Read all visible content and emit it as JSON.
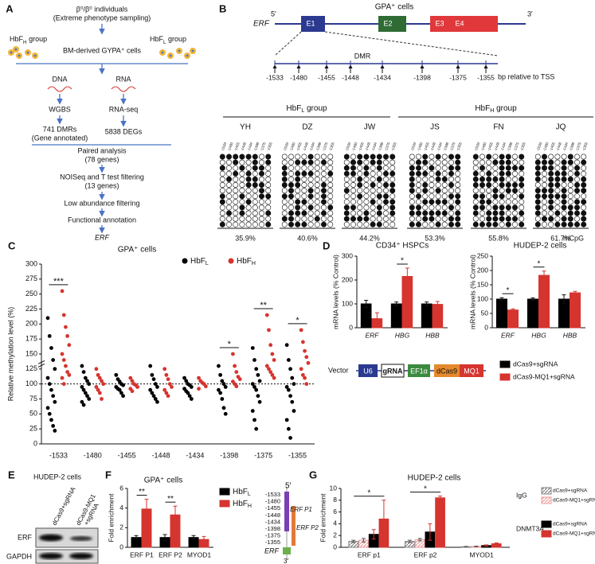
{
  "panel_A": {
    "label": "A",
    "top": "β⁰/β⁰ individuals",
    "top2": "(Extreme phenotype sampling)",
    "grp_h": [
      "HbF",
      "H",
      " group"
    ],
    "grp_l": [
      "HbF",
      "L",
      " group"
    ],
    "cells": "BM-derived GYPA⁺ cells",
    "dna": "DNA",
    "rna": "RNA",
    "wgbs": "WGBS",
    "rnaseq": "RNA-seq",
    "dmrs": "741 DMRs",
    "gene_ann": "(Gene annotated)",
    "degs": "5838 DEGs",
    "paired": "Paired analysis",
    "paired2": "(78 genes)",
    "noiseq": "NOISeq and T test filtering",
    "noiseq2": "(13 genes)",
    "low": "Low abundance filtering",
    "func": "Functional annotation",
    "erf": "ERF"
  },
  "panel_B": {
    "label": "B",
    "title": "GPA⁺ cells",
    "gene": "ERF",
    "five": "5′",
    "three": "3′",
    "exons": [
      "E1",
      "E2",
      "E3",
      "E4"
    ],
    "exon_colors": [
      "#2b3990",
      "#2f6b34",
      "#e0383b",
      "#e0383b"
    ],
    "dmr": "DMR",
    "positions": [
      -1533,
      -1480,
      -1455,
      -1448,
      -1434,
      -1398,
      -1375,
      -1355
    ],
    "bp": "bp relative to TSS",
    "groups": [
      [
        "HbF",
        "L",
        " group"
      ],
      [
        "HbF",
        "H",
        " group"
      ]
    ],
    "samples": [
      "YH",
      "DZ",
      "JW",
      "JS",
      "FN",
      "JQ"
    ],
    "pct": [
      35.9,
      40.6,
      44.2,
      53.3,
      55.8,
      61.7
    ],
    "pct_labels": [
      "35.9%",
      "40.6%",
      "44.2%",
      "53.3%",
      "55.8%",
      "61.7%"
    ],
    "unit": "mCpG"
  },
  "chart_data": [
    {
      "type": "dot",
      "label": "C",
      "title": "GPA⁺ cells",
      "y_label": "Relative methylation level (%)",
      "categories": [
        "-1533",
        "-1480",
        "-1455",
        "-1448",
        "-1434",
        "-1398",
        "-1375",
        "-1355"
      ],
      "ylim": [
        0,
        300
      ],
      "yticks": [
        0,
        25,
        50,
        75,
        100,
        125,
        150,
        175,
        200,
        225,
        250,
        275,
        300
      ],
      "ref_line": 100,
      "sig": [
        "***",
        null,
        null,
        null,
        null,
        "*",
        "**",
        "*"
      ],
      "series": [
        {
          "name": "HbF",
          "sub": "L",
          "color": "#000000",
          "values": [
            [
              210,
              180,
              160,
              140,
              125,
              110,
              100,
              90,
              80,
              70,
              60,
              50,
              40,
              30,
              22
            ],
            [
              130,
              120,
              110,
              105,
              100,
              95,
              90,
              85,
              80,
              75,
              70,
              65
            ],
            [
              115,
              108,
              104,
              100,
              98,
              95,
              92,
              90,
              85,
              80
            ],
            [
              130,
              115,
              108,
              100,
              95,
              90,
              85,
              80,
              75,
              70
            ],
            [
              110,
              105,
              100,
              98,
              95,
              92,
              88,
              85,
              80,
              75
            ],
            [
              130,
              115,
              105,
              100,
              95,
              90,
              85,
              75,
              60,
              50
            ],
            [
              160,
              140,
              125,
              115,
              105,
              100,
              95,
              90,
              80,
              70,
              55,
              40,
              25
            ],
            [
              165,
              140,
              125,
              110,
              100,
              95,
              90,
              80,
              70,
              55,
              40,
              25,
              10
            ]
          ]
        },
        {
          "name": "HbF",
          "sub": "H",
          "color": "#d6342f",
          "values": [
            [
              255,
              215,
              195,
              180,
              165,
              150,
              140,
              130,
              120,
              115,
              110,
              100
            ],
            [
              125,
              115,
              110,
              105,
              100,
              95,
              90,
              85,
              75
            ],
            [
              110,
              105,
              100,
              98,
              95,
              92,
              88
            ],
            [
              125,
              115,
              108,
              100,
              95,
              90,
              85,
              80
            ],
            [
              110,
              105,
              102,
              100,
              96,
              92
            ],
            [
              150,
              130,
              120,
              112,
              108,
              104,
              100,
              96
            ],
            [
              215,
              190,
              165,
              150,
              140,
              130,
              125,
              120,
              115,
              110
            ],
            [
              190,
              170,
              155,
              145,
              135,
              125,
              115,
              110,
              100
            ]
          ]
        }
      ]
    },
    {
      "type": "bar",
      "label": "D",
      "title": "CD34⁺ HSPCs",
      "y_label": "mRNA levels (% Control)",
      "italic_categories": true,
      "categories": [
        "ERF",
        "HBG",
        "HBB"
      ],
      "ylim": [
        0,
        300
      ],
      "yticks": [
        0,
        100,
        200,
        300
      ],
      "sig": [
        null,
        "*",
        null
      ],
      "series": [
        {
          "name": "dCas9+sgRNA",
          "color": "#000000",
          "values": [
            100,
            100,
            100
          ],
          "errors": [
            15,
            8,
            8
          ]
        },
        {
          "name": "dCas9-MQ1+sgRNA",
          "color": "#d6342f",
          "values": [
            38,
            215,
            98
          ],
          "errors": [
            25,
            35,
            12
          ]
        }
      ]
    },
    {
      "type": "bar",
      "title": "HUDEP-2 cells",
      "y_label": "mRNA levels (% Control)",
      "italic_categories": true,
      "categories": [
        "ERF",
        "HBG",
        "HBB"
      ],
      "ylim": [
        0,
        250
      ],
      "yticks": [
        0,
        50,
        100,
        150,
        200,
        250
      ],
      "sig": [
        "*",
        "*",
        null
      ],
      "series": [
        {
          "color": "#000000",
          "values": [
            100,
            100,
            100
          ],
          "errors": [
            5,
            4,
            15
          ]
        },
        {
          "color": "#d6342f",
          "values": [
            62,
            183,
            122
          ],
          "errors": [
            4,
            15,
            5
          ]
        }
      ]
    },
    {
      "type": "bar",
      "label": "F",
      "title": "GPA⁺ cells",
      "y_label": "Fold enrichment",
      "italic_categories": false,
      "categories": [
        "ERF P1",
        "ERF P2",
        "MYOD1"
      ],
      "ylim": [
        0,
        6
      ],
      "yticks": [
        0,
        2,
        4,
        6
      ],
      "sig": [
        "**",
        "**",
        null
      ],
      "series": [
        {
          "name": "HbF",
          "sub": "L",
          "color": "#000000",
          "values": [
            1.0,
            1.0,
            1.0
          ],
          "errors": [
            0.2,
            0.3,
            0.2
          ]
        },
        {
          "name": "HbF",
          "sub": "H",
          "color": "#d6342f",
          "values": [
            3.9,
            3.3,
            0.8
          ],
          "errors": [
            1.0,
            0.9,
            0.3
          ]
        }
      ]
    },
    {
      "type": "bar",
      "label": "G",
      "title": "HUDEP-2 cells",
      "y_label": "Fold enrichment",
      "italic_categories": false,
      "categories": [
        "ERF p1",
        "ERF p2",
        "MYOD1"
      ],
      "ylim": [
        0,
        10
      ],
      "yticks": [
        0,
        2,
        4,
        6,
        8,
        10
      ],
      "sig": [
        "*",
        "*",
        null
      ],
      "series": [
        {
          "group": "IgG",
          "name": "dCas9+sgRNA",
          "color": "#808080",
          "hatch": true,
          "values": [
            1.0,
            1.0,
            0.1
          ],
          "errors": [
            0.2,
            0.2,
            0.05
          ]
        },
        {
          "name": "dCas9-MQ1+sgRNA",
          "color": "#f09a9a",
          "hatch": true,
          "values": [
            1.2,
            1.3,
            0.15
          ],
          "errors": [
            0.3,
            0.2,
            0.05
          ]
        },
        {
          "group": "DNMT3A",
          "name": "dCas9+sgRNA",
          "color": "#000000",
          "values": [
            2.2,
            2.6,
            0.3
          ],
          "errors": [
            0.8,
            1.4,
            0.1
          ]
        },
        {
          "name": "dCas9-MQ1+sgRNA",
          "color": "#d6342f",
          "values": [
            4.8,
            8.4,
            0.6
          ],
          "errors": [
            3.2,
            0.3,
            0.15
          ]
        }
      ]
    }
  ],
  "panel_D_vector": {
    "label": "Vector",
    "parts": [
      "U6",
      "gRNA",
      "EF1α",
      "dCas9",
      "MQ1"
    ]
  },
  "panel_E": {
    "label": "E",
    "title": "HUDEP-2 cells",
    "lanes": [
      [
        "dCas9+sgRNA"
      ],
      [
        "dCas9-MQ1",
        "+sgRNA"
      ]
    ],
    "rows": [
      "ERF",
      "GAPDH"
    ]
  },
  "panel_F_diagram": {
    "five": "5′",
    "three": "3′",
    "p1": "ERF P1",
    "p2": "ERF P2",
    "gene": "ERF"
  }
}
